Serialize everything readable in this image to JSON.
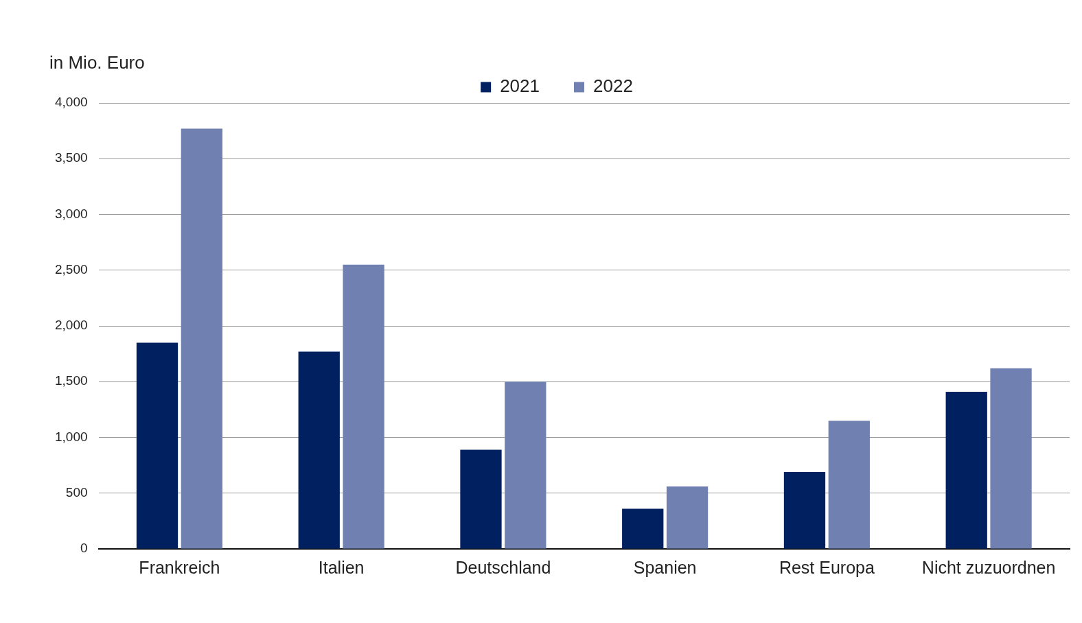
{
  "chart_data": {
    "type": "bar",
    "ylabel": "in Mio. Euro",
    "categories": [
      "Frankreich",
      "Italien",
      "Deutschland",
      "Spanien",
      "Rest Europa",
      "Nicht zuzuordnen"
    ],
    "series": [
      {
        "name": "2021",
        "color": "#002060",
        "values": [
          1850,
          1770,
          890,
          360,
          690,
          1410
        ]
      },
      {
        "name": "2022",
        "color": "#7080b0",
        "values": [
          3770,
          2550,
          1500,
          560,
          1150,
          1620
        ]
      }
    ],
    "ylim": [
      0,
      4000
    ],
    "yticks": [
      {
        "value": 0,
        "label": "0"
      },
      {
        "value": 500,
        "label": "500"
      },
      {
        "value": 1000,
        "label": "1,000"
      },
      {
        "value": 1500,
        "label": "1,500"
      },
      {
        "value": 2000,
        "label": "2,000"
      },
      {
        "value": 2500,
        "label": "2,500"
      },
      {
        "value": 3000,
        "label": "3,000"
      },
      {
        "value": 3500,
        "label": "3,500"
      },
      {
        "value": 4000,
        "label": "4,000"
      }
    ],
    "grid": "y",
    "legend": "top"
  }
}
